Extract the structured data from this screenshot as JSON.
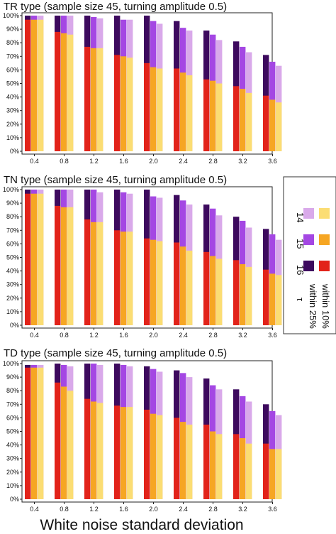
{
  "colors": {
    "tau16_within25": "#3d0a5e",
    "tau15_within25": "#a447e3",
    "tau14_within25": "#d9a9ea",
    "tau16_within10": "#e2231a",
    "tau15_within10": "#f6a623",
    "tau14_within10": "#fbdd73"
  },
  "legend": {
    "tau_label": "τ",
    "row_within25": "within 25%",
    "row_within10": "within 10%",
    "col_16": "16",
    "col_15": "15",
    "col_14": "14"
  },
  "chart_data": [
    {
      "type": "bar",
      "title": "TR type (sample size 45, turning amplitude 0.5)",
      "xlabel": "White noise standard deviation",
      "ylabel": "",
      "categories": [
        "0.4",
        "0.8",
        "1.2",
        "1.6",
        "2.0",
        "2.4",
        "2.8",
        "3.2",
        "3.6"
      ],
      "yticks": [
        "0%",
        "10%",
        "20%",
        "30%",
        "40%",
        "50%",
        "60%",
        "70%",
        "80%",
        "90%",
        "100%"
      ],
      "ylim": [
        0,
        100
      ],
      "series": [
        {
          "name": "16",
          "metric": "within 25%",
          "values": [
            100,
            100,
            100,
            100,
            100,
            96,
            89,
            81,
            71
          ]
        },
        {
          "name": "15",
          "metric": "within 25%",
          "values": [
            100,
            100,
            99,
            97,
            96,
            91,
            86,
            77,
            66
          ]
        },
        {
          "name": "14",
          "metric": "within 25%",
          "values": [
            100,
            100,
            98,
            97,
            94,
            89,
            82,
            73,
            63
          ]
        },
        {
          "name": "16",
          "metric": "within 10%",
          "values": [
            97,
            88,
            77,
            71,
            65,
            61,
            53,
            48,
            41
          ]
        },
        {
          "name": "15",
          "metric": "within 10%",
          "values": [
            97,
            87,
            76,
            70,
            62,
            58,
            52,
            46,
            38
          ]
        },
        {
          "name": "14",
          "metric": "within 10%",
          "values": [
            97,
            86,
            76,
            69,
            61,
            56,
            50,
            43,
            36
          ]
        }
      ]
    },
    {
      "type": "bar",
      "title": "TN type (sample size 45, turning amplitude 0.5)",
      "xlabel": "White noise standard deviation",
      "ylabel": "",
      "categories": [
        "0.4",
        "0.8",
        "1.2",
        "1.6",
        "2.0",
        "2.4",
        "2.8",
        "3.2",
        "3.6"
      ],
      "yticks": [
        "0%",
        "10%",
        "20%",
        "30%",
        "40%",
        "50%",
        "60%",
        "70%",
        "80%",
        "90%",
        "100%"
      ],
      "ylim": [
        0,
        100
      ],
      "series": [
        {
          "name": "16",
          "metric": "within 25%",
          "values": [
            100,
            100,
            100,
            100,
            100,
            96,
            89,
            80,
            71
          ]
        },
        {
          "name": "15",
          "metric": "within 25%",
          "values": [
            100,
            100,
            100,
            98,
            95,
            92,
            86,
            77,
            67
          ]
        },
        {
          "name": "14",
          "metric": "within 25%",
          "values": [
            100,
            100,
            98,
            97,
            94,
            89,
            81,
            72,
            63
          ]
        },
        {
          "name": "16",
          "metric": "within 10%",
          "values": [
            97,
            88,
            78,
            70,
            64,
            61,
            54,
            48,
            41
          ]
        },
        {
          "name": "15",
          "metric": "within 10%",
          "values": [
            97,
            87,
            76,
            69,
            63,
            58,
            51,
            45,
            38
          ]
        },
        {
          "name": "14",
          "metric": "within 10%",
          "values": [
            97,
            87,
            76,
            69,
            62,
            55,
            49,
            43,
            37
          ]
        }
      ]
    },
    {
      "type": "bar",
      "title": "TD type (sample size 45, turning amplitude 0.5)",
      "xlabel": "White noise standard deviation",
      "ylabel": "",
      "categories": [
        "0.4",
        "0.8",
        "1.2",
        "1.6",
        "2.0",
        "2.4",
        "2.8",
        "3.2",
        "3.6"
      ],
      "yticks": [
        "0%",
        "10%",
        "20%",
        "30%",
        "40%",
        "50%",
        "60%",
        "70%",
        "80%",
        "90%",
        "100%"
      ],
      "ylim": [
        0,
        100
      ],
      "series": [
        {
          "name": "16",
          "metric": "within 25%",
          "values": [
            99,
            100,
            100,
            100,
            98,
            95,
            89,
            81,
            70
          ]
        },
        {
          "name": "15",
          "metric": "within 25%",
          "values": [
            99,
            99,
            100,
            99,
            96,
            93,
            84,
            76,
            65
          ]
        },
        {
          "name": "14",
          "metric": "within 25%",
          "values": [
            99,
            98,
            99,
            98,
            94,
            90,
            81,
            72,
            62
          ]
        },
        {
          "name": "16",
          "metric": "within 10%",
          "values": [
            97,
            86,
            74,
            69,
            66,
            60,
            55,
            48,
            41
          ]
        },
        {
          "name": "15",
          "metric": "within 10%",
          "values": [
            97,
            83,
            72,
            68,
            63,
            57,
            50,
            45,
            37
          ]
        },
        {
          "name": "14",
          "metric": "within 10%",
          "values": [
            97,
            80,
            71,
            68,
            62,
            55,
            48,
            41,
            37
          ]
        }
      ]
    }
  ]
}
